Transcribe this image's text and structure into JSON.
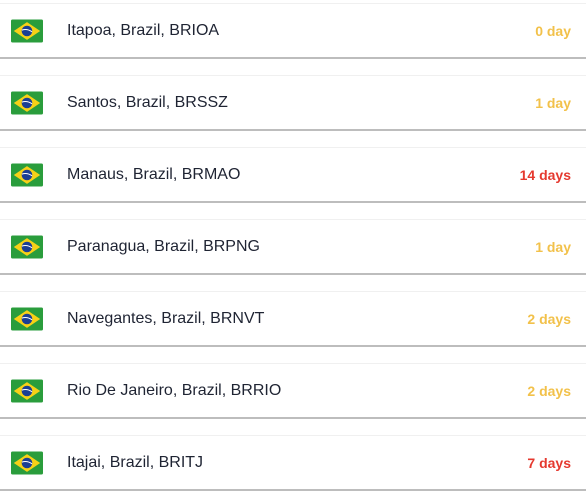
{
  "colors": {
    "warning": "#f2c14a",
    "danger": "#e5392f",
    "flag_green": "#2a9d3c",
    "flag_yellow": "#f7d117",
    "flag_blue": "#1c3f94"
  },
  "rows": [
    {
      "flag_icon": "brazil-flag-icon",
      "port": "Itapoa, Brazil, BRIOA",
      "eta": "0 day",
      "status": "warning"
    },
    {
      "flag_icon": "brazil-flag-icon",
      "port": "Santos, Brazil, BRSSZ",
      "eta": "1 day",
      "status": "warning"
    },
    {
      "flag_icon": "brazil-flag-icon",
      "port": "Manaus, Brazil, BRMAO",
      "eta": "14 days",
      "status": "danger"
    },
    {
      "flag_icon": "brazil-flag-icon",
      "port": "Paranagua, Brazil, BRPNG",
      "eta": "1 day",
      "status": "warning"
    },
    {
      "flag_icon": "brazil-flag-icon",
      "port": "Navegantes, Brazil, BRNVT",
      "eta": "2 days",
      "status": "warning"
    },
    {
      "flag_icon": "brazil-flag-icon",
      "port": "Rio De Janeiro, Brazil, BRRIO",
      "eta": "2 days",
      "status": "warning"
    },
    {
      "flag_icon": "brazil-flag-icon",
      "port": "Itajai, Brazil, BRITJ",
      "eta": "7 days",
      "status": "danger"
    }
  ]
}
